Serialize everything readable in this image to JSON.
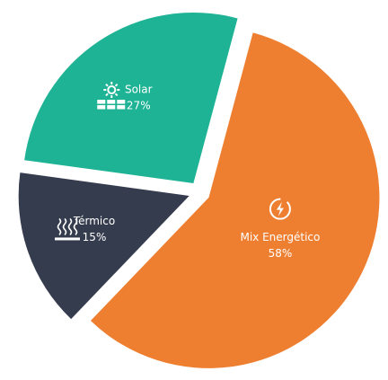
{
  "chart_data": {
    "type": "pie",
    "categories": [
      "Mix Energético",
      "Térmico",
      "Solar"
    ],
    "values": [
      58,
      15,
      27
    ],
    "value_labels": [
      "58%",
      "15%",
      "27%"
    ],
    "colors": [
      "#ee7f30",
      "#353c4e",
      "#1db394"
    ]
  }
}
